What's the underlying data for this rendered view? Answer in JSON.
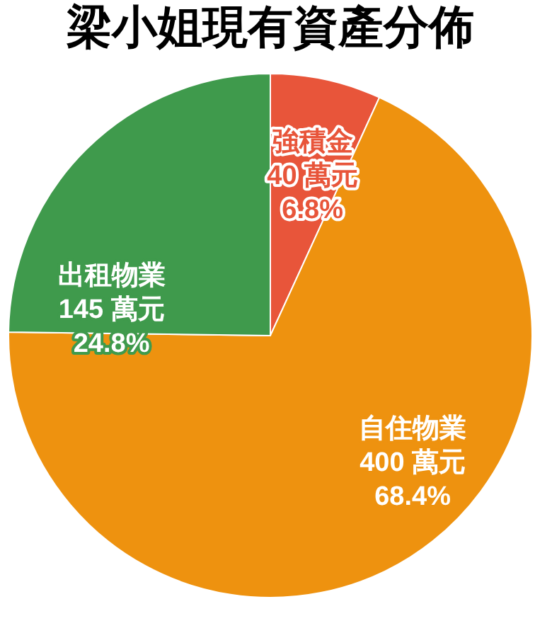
{
  "chart_data": {
    "type": "pie",
    "title": "梁小姐現有資產分佈",
    "categories": [
      "強積金",
      "自住物業",
      "出租物業"
    ],
    "values": [
      40,
      400,
      145
    ],
    "colors": [
      "#e8553a",
      "#ee920f",
      "#3f9a4c"
    ],
    "value_labels": [
      "40 萬元",
      "400 萬元",
      "145 萬元"
    ],
    "annotations": [
      "6.8%",
      "68.4%",
      "24.8%"
    ]
  }
}
